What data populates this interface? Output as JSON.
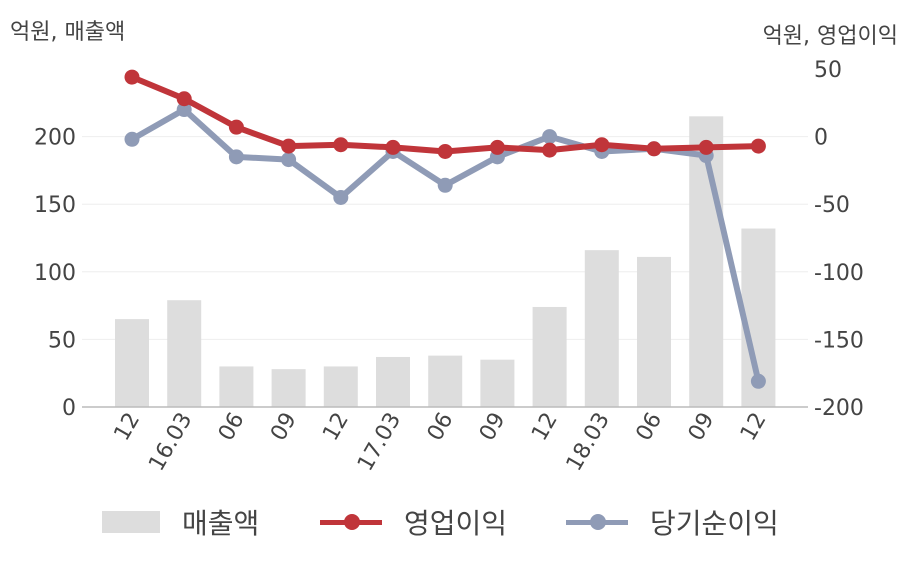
{
  "units": {
    "left": "억원, 매출액",
    "right": "억원, 영업이익"
  },
  "colors": {
    "revenue": "#dddddd",
    "operating": "#c0353a",
    "net": "#8f9bb6",
    "axis": "#bbbbbb",
    "grid": "#eeeeee",
    "text": "#444444"
  },
  "chart_data": {
    "type": "bar",
    "categories": [
      "12",
      "16.03",
      "06",
      "09",
      "12",
      "17.03",
      "06",
      "09",
      "12",
      "18.03",
      "06",
      "09",
      "12"
    ],
    "series": [
      {
        "name": "매출액",
        "type": "bar",
        "axis": "left",
        "values": [
          65,
          79,
          30,
          28,
          30,
          37,
          38,
          35,
          74,
          116,
          111,
          215,
          132
        ]
      },
      {
        "name": "영업이익",
        "type": "line",
        "axis": "right",
        "values": [
          44,
          28,
          7,
          -7,
          -6,
          -8,
          -11,
          -8,
          -10,
          -6,
          -9,
          -8,
          -7
        ]
      },
      {
        "name": "당기순이익",
        "type": "line",
        "axis": "right",
        "values": [
          -2,
          20,
          -15,
          -17,
          -45,
          -11,
          -36,
          -15,
          0,
          -11,
          -9,
          -14,
          -181
        ]
      }
    ],
    "left_axis": {
      "ticks": [
        0,
        50,
        100,
        150,
        200
      ],
      "range": [
        0,
        250
      ]
    },
    "right_axis": {
      "ticks": [
        50,
        0,
        -50,
        -100,
        -150,
        -200
      ],
      "range": [
        -200,
        50
      ]
    },
    "legend": {
      "position": "bottom",
      "entries": [
        "매출액",
        "영업이익",
        "당기순이익"
      ]
    },
    "grid": true
  }
}
